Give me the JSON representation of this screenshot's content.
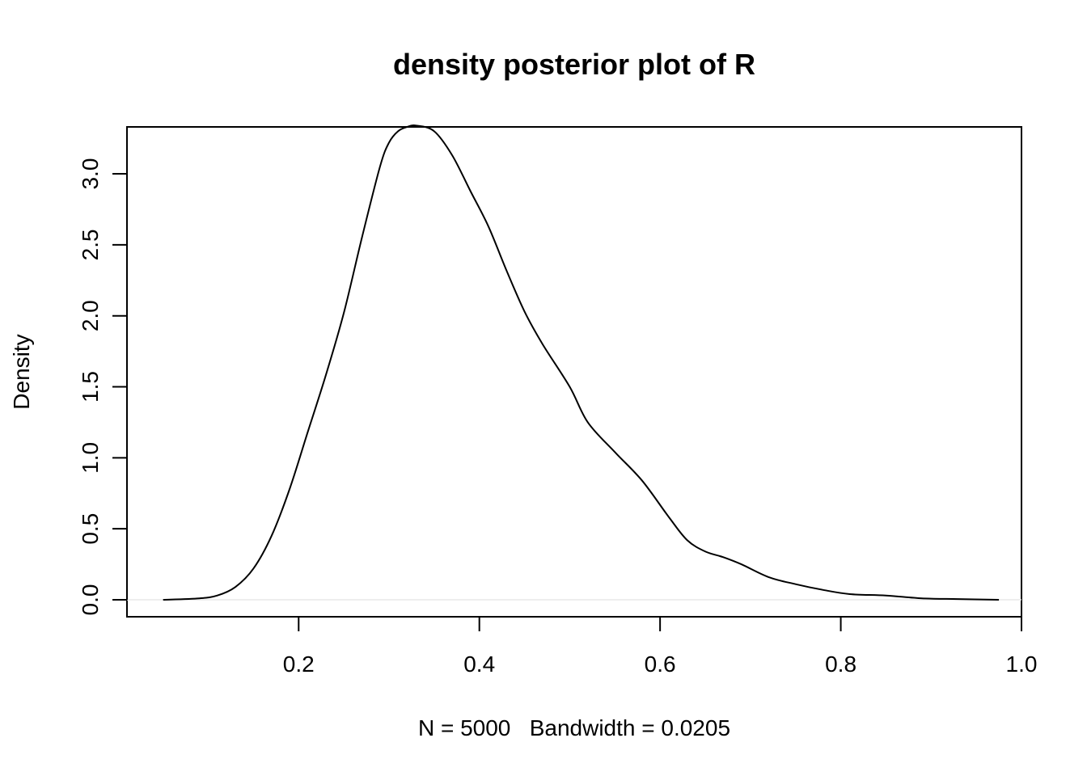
{
  "chart_data": {
    "type": "line",
    "title": "density posterior plot of R",
    "xlabel": "N = 5000   Bandwidth = 0.0205",
    "ylabel": "Density",
    "xlim": [
      0.01,
      1.0
    ],
    "ylim": [
      0.0,
      3.45
    ],
    "x_ticks": [
      0.2,
      0.4,
      0.6,
      0.8,
      1.0
    ],
    "x_tick_labels": [
      "0.2",
      "0.4",
      "0.6",
      "0.8",
      "1.0"
    ],
    "y_ticks": [
      0.0,
      0.5,
      1.0,
      1.5,
      2.0,
      2.5,
      3.0
    ],
    "y_tick_labels": [
      "0.0",
      "0.5",
      "1.0",
      "1.5",
      "2.0",
      "2.5",
      "3.0"
    ],
    "grid": false,
    "series": [
      {
        "x": [
          0.05,
          0.09,
          0.11,
          0.13,
          0.15,
          0.17,
          0.19,
          0.21,
          0.23,
          0.25,
          0.27,
          0.29,
          0.3,
          0.31,
          0.32,
          0.33,
          0.35,
          0.37,
          0.39,
          0.41,
          0.43,
          0.45,
          0.47,
          0.5,
          0.52,
          0.55,
          0.58,
          0.61,
          0.63,
          0.65,
          0.67,
          0.69,
          0.72,
          0.75,
          0.78,
          0.81,
          0.85,
          0.89,
          0.93,
          0.975
        ],
        "y": [
          0.0,
          0.01,
          0.03,
          0.09,
          0.22,
          0.45,
          0.78,
          1.18,
          1.58,
          2.02,
          2.55,
          3.05,
          3.22,
          3.3,
          3.33,
          3.34,
          3.3,
          3.13,
          2.88,
          2.63,
          2.32,
          2.03,
          1.8,
          1.5,
          1.25,
          1.04,
          0.84,
          0.58,
          0.42,
          0.34,
          0.3,
          0.25,
          0.16,
          0.11,
          0.07,
          0.04,
          0.03,
          0.01,
          0.005,
          0.0
        ]
      }
    ]
  }
}
